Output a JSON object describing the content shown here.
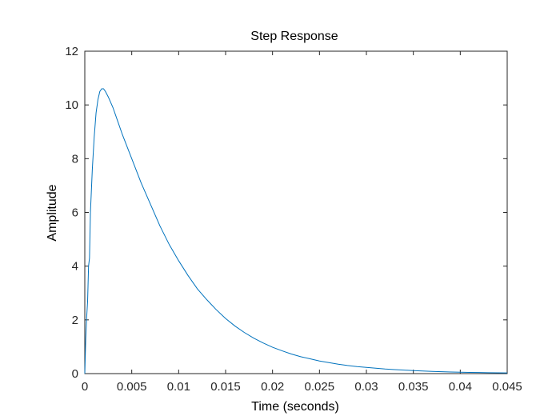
{
  "chart_data": {
    "type": "line",
    "title": "Step Response",
    "xlabel": "Time (seconds)",
    "ylabel": "Amplitude",
    "xlim": [
      0,
      0.045
    ],
    "ylim": [
      0,
      12
    ],
    "x_ticks": [
      0,
      0.005,
      0.01,
      0.015,
      0.02,
      0.025,
      0.03,
      0.035,
      0.04,
      0.045
    ],
    "x_tick_labels": [
      "0",
      "0.005",
      "0.01",
      "0.015",
      "0.02",
      "0.025",
      "0.03",
      "0.035",
      "0.04",
      "0.045"
    ],
    "y_ticks": [
      0,
      2,
      4,
      6,
      8,
      10,
      12
    ],
    "y_tick_labels": [
      "0",
      "2",
      "4",
      "6",
      "8",
      "10",
      "12"
    ],
    "grid": false,
    "series": [
      {
        "color": "#0072bd",
        "x": [
          0,
          0.0001,
          0.0002,
          0.0003,
          0.0004,
          0.0005,
          0.0006,
          0.0008,
          0.001,
          0.0012,
          0.0014,
          0.0016,
          0.0018,
          0.002,
          0.0022,
          0.0025,
          0.003,
          0.0035,
          0.004,
          0.005,
          0.006,
          0.007,
          0.008,
          0.009,
          0.01,
          0.011,
          0.012,
          0.013,
          0.014,
          0.015,
          0.016,
          0.017,
          0.018,
          0.019,
          0.02,
          0.021,
          0.022,
          0.023,
          0.024,
          0.025,
          0.026,
          0.027,
          0.028,
          0.029,
          0.03,
          0.031,
          0.032,
          0.033,
          0.034,
          0.035,
          0.036,
          0.037,
          0.038,
          0.039,
          0.04,
          0.041,
          0.042,
          0.043,
          0.044,
          0.045
        ],
        "y": [
          0,
          1.3,
          2.1,
          2.7,
          4.0,
          4.3,
          6.0,
          7.6,
          8.8,
          9.7,
          10.2,
          10.5,
          10.6,
          10.6,
          10.5,
          10.3,
          9.9,
          9.4,
          8.9,
          8.0,
          7.1,
          6.3,
          5.5,
          4.8,
          4.2,
          3.65,
          3.15,
          2.75,
          2.38,
          2.05,
          1.77,
          1.53,
          1.32,
          1.14,
          0.98,
          0.85,
          0.73,
          0.63,
          0.55,
          0.47,
          0.41,
          0.35,
          0.3,
          0.26,
          0.23,
          0.2,
          0.17,
          0.15,
          0.13,
          0.11,
          0.095,
          0.082,
          0.071,
          0.061,
          0.053,
          0.046,
          0.04,
          0.034,
          0.03,
          0.026
        ]
      }
    ]
  }
}
